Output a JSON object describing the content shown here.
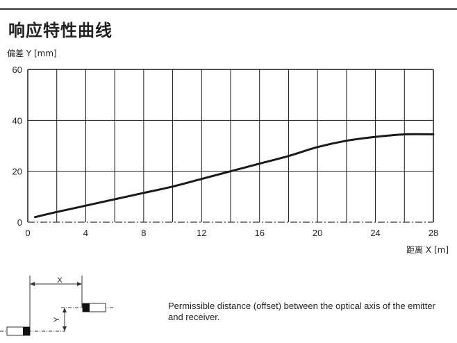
{
  "header": {
    "title": "响应特性曲线",
    "y_axis_label": "偏差 Y [mm]",
    "x_axis_label": "距离 X [m]"
  },
  "chart_data": {
    "type": "line",
    "title": "响应特性曲线",
    "xlabel": "距离 X [m]",
    "ylabel": "偏差 Y [mm]",
    "xlim": [
      0,
      28
    ],
    "ylim": [
      0,
      60
    ],
    "x_ticks": [
      0,
      4,
      8,
      12,
      16,
      20,
      24,
      28
    ],
    "y_ticks": [
      0,
      20,
      40,
      60
    ],
    "grid": true,
    "series": [
      {
        "x": [
          0.5,
          2,
          4,
          6,
          8,
          10,
          12,
          14,
          16,
          18,
          20,
          22,
          24,
          26,
          28
        ],
        "y": [
          2,
          4,
          6.5,
          9,
          11.5,
          14,
          17,
          20,
          23,
          26,
          29.5,
          32,
          33.5,
          34.5,
          34.5
        ]
      }
    ],
    "colors": {
      "line": "#1a1a1a",
      "grid": "#1a1a1a",
      "dashdot": "#333333"
    }
  },
  "diagram": {
    "x_label": "X",
    "y_label": "Y"
  },
  "caption": "Permissible distance (offset) between the optical axis of the emitter and receiver."
}
